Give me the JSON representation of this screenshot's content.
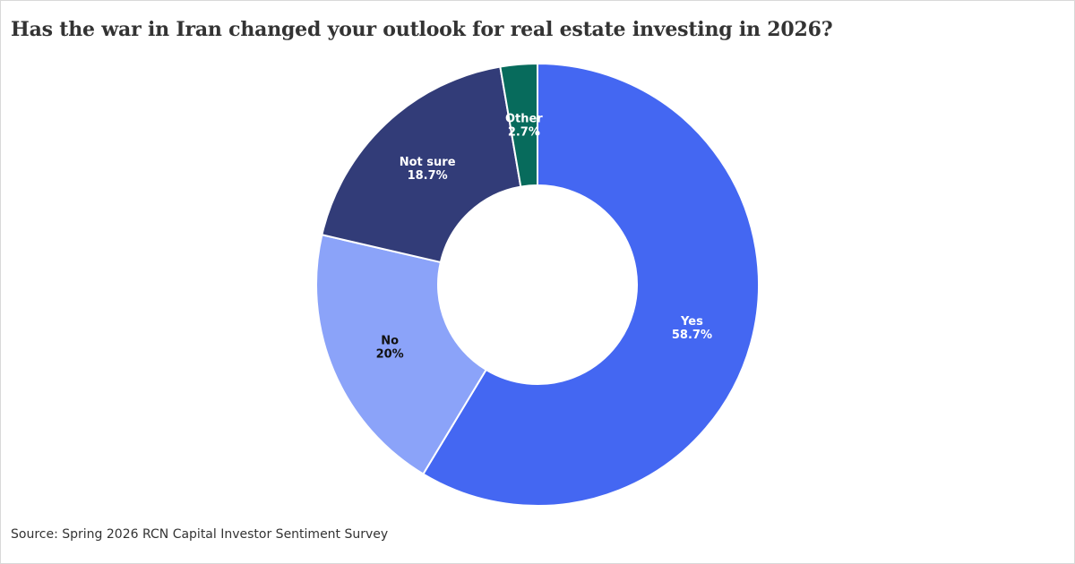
{
  "chart_data": {
    "type": "pie",
    "title": "Has the war in Iran changed your outlook for real estate investing in 2026?",
    "source": "Source: Spring 2026 RCN Capital Investor Sentiment Survey",
    "donut": true,
    "slices": [
      {
        "name": "Yes",
        "value": 58.7,
        "label": "58.7%",
        "color": "#4467f2",
        "text_color": "#ffffff"
      },
      {
        "name": "No",
        "value": 20,
        "label": "20%",
        "color": "#8ba3f9",
        "text_color": "#111111"
      },
      {
        "name": "Not sure",
        "value": 18.7,
        "label": "18.7%",
        "color": "#323c78",
        "text_color": "#ffffff"
      },
      {
        "name": "Other",
        "value": 2.7,
        "label": "2.7%",
        "color": "#076b5c",
        "text_color": "#ffffff"
      }
    ]
  }
}
